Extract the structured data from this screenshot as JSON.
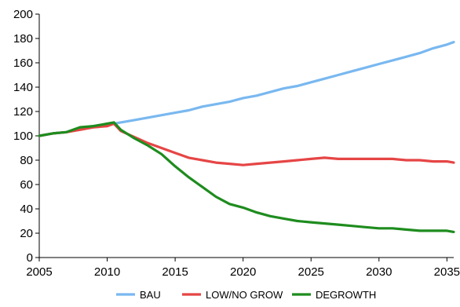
{
  "chart_data": {
    "type": "line",
    "title": "",
    "xlabel": "",
    "ylabel": "",
    "xlim": [
      2005,
      2035.5
    ],
    "ylim": [
      0,
      200
    ],
    "xticks": [
      2005,
      2010,
      2015,
      2020,
      2025,
      2030,
      2035
    ],
    "yticks": [
      0,
      20,
      40,
      60,
      80,
      100,
      120,
      140,
      160,
      180,
      200
    ],
    "grid": false,
    "legend_position": "bottom",
    "series": [
      {
        "name": "BAU",
        "color": "#79b8f0",
        "points": [
          [
            2005,
            100
          ],
          [
            2006,
            102
          ],
          [
            2007,
            103
          ],
          [
            2008,
            106
          ],
          [
            2009,
            108
          ],
          [
            2010,
            109
          ],
          [
            2011,
            111
          ],
          [
            2012,
            113
          ],
          [
            2013,
            115
          ],
          [
            2014,
            117
          ],
          [
            2015,
            119
          ],
          [
            2016,
            121
          ],
          [
            2017,
            124
          ],
          [
            2018,
            126
          ],
          [
            2019,
            128
          ],
          [
            2020,
            131
          ],
          [
            2021,
            133
          ],
          [
            2022,
            136
          ],
          [
            2023,
            139
          ],
          [
            2024,
            141
          ],
          [
            2025,
            144
          ],
          [
            2026,
            147
          ],
          [
            2027,
            150
          ],
          [
            2028,
            153
          ],
          [
            2029,
            156
          ],
          [
            2030,
            159
          ],
          [
            2031,
            162
          ],
          [
            2032,
            165
          ],
          [
            2033,
            168
          ],
          [
            2034,
            172
          ],
          [
            2035,
            175
          ],
          [
            2035.5,
            177
          ]
        ]
      },
      {
        "name": "LOW/NO GROW",
        "color": "#e64545",
        "points": [
          [
            2005,
            100
          ],
          [
            2006,
            102
          ],
          [
            2007,
            103
          ],
          [
            2008,
            105
          ],
          [
            2009,
            107
          ],
          [
            2010,
            108
          ],
          [
            2010.5,
            110
          ],
          [
            2011,
            104
          ],
          [
            2012,
            99
          ],
          [
            2013,
            94
          ],
          [
            2014,
            90
          ],
          [
            2015,
            86
          ],
          [
            2016,
            82
          ],
          [
            2017,
            80
          ],
          [
            2018,
            78
          ],
          [
            2019,
            77
          ],
          [
            2020,
            76
          ],
          [
            2021,
            77
          ],
          [
            2022,
            78
          ],
          [
            2023,
            79
          ],
          [
            2024,
            80
          ],
          [
            2025,
            81
          ],
          [
            2026,
            82
          ],
          [
            2027,
            81
          ],
          [
            2028,
            81
          ],
          [
            2029,
            81
          ],
          [
            2030,
            81
          ],
          [
            2031,
            81
          ],
          [
            2032,
            80
          ],
          [
            2033,
            80
          ],
          [
            2034,
            79
          ],
          [
            2035,
            79
          ],
          [
            2035.5,
            78
          ]
        ]
      },
      {
        "name": "DEGROWTH",
        "color": "#1e8c1e",
        "points": [
          [
            2005,
            100
          ],
          [
            2006,
            102
          ],
          [
            2007,
            103
          ],
          [
            2008,
            107
          ],
          [
            2009,
            108
          ],
          [
            2010,
            110
          ],
          [
            2010.5,
            111
          ],
          [
            2011,
            105
          ],
          [
            2012,
            98
          ],
          [
            2013,
            92
          ],
          [
            2014,
            85
          ],
          [
            2015,
            75
          ],
          [
            2016,
            66
          ],
          [
            2017,
            58
          ],
          [
            2018,
            50
          ],
          [
            2019,
            44
          ],
          [
            2020,
            41
          ],
          [
            2021,
            37
          ],
          [
            2022,
            34
          ],
          [
            2023,
            32
          ],
          [
            2024,
            30
          ],
          [
            2025,
            29
          ],
          [
            2026,
            28
          ],
          [
            2027,
            27
          ],
          [
            2028,
            26
          ],
          [
            2029,
            25
          ],
          [
            2030,
            24
          ],
          [
            2031,
            24
          ],
          [
            2032,
            23
          ],
          [
            2033,
            22
          ],
          [
            2034,
            22
          ],
          [
            2035,
            22
          ],
          [
            2035.5,
            21
          ]
        ]
      }
    ]
  }
}
